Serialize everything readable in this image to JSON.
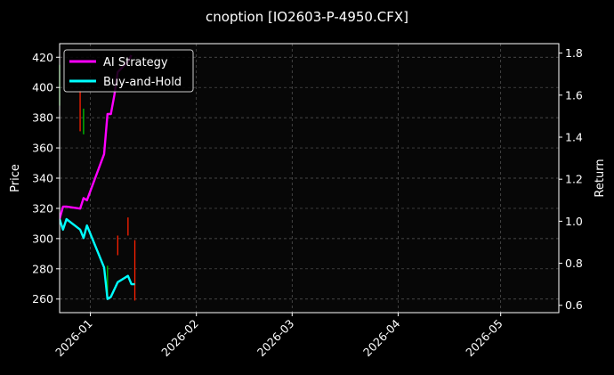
{
  "chart_data": {
    "type": "line",
    "title": "cnoption [IO2603-P-4950.CFX]",
    "ylabel_left": "Price",
    "ylabel_right": "Return",
    "x_ticks": [
      "2026-01",
      "2026-02",
      "2026-03",
      "2026-04",
      "2026-05"
    ],
    "y_left_ticks": [
      "260",
      "280",
      "300",
      "320",
      "340",
      "360",
      "380",
      "400",
      "420"
    ],
    "y_right_ticks": [
      "0.6",
      "0.8",
      "1.0",
      "1.2",
      "1.4",
      "1.6",
      "1.8"
    ],
    "xlim": [
      "2025-12-23",
      "2026-05-18"
    ],
    "ylim_left": [
      251,
      429
    ],
    "ylim_right": [
      0.565,
      1.845
    ],
    "grid": true,
    "legend_position": "top-left",
    "legend": [
      "AI Strategy",
      "Buy-and-Hold"
    ],
    "series": [
      {
        "name": "AI Strategy",
        "axis": "right",
        "color": "#ff00ff",
        "x": [
          "2025-12-23",
          "2025-12-24",
          "2025-12-25",
          "2025-12-29",
          "2025-12-30",
          "2025-12-31",
          "2026-01-05",
          "2026-01-06",
          "2026-01-07",
          "2026-01-08",
          "2026-01-09",
          "2026-01-12",
          "2026-01-13"
        ],
        "values": [
          1.01,
          1.07,
          1.07,
          1.06,
          1.11,
          1.1,
          1.32,
          1.51,
          1.51,
          1.6,
          1.71,
          1.76,
          1.79
        ]
      },
      {
        "name": "Buy-and-Hold",
        "axis": "right",
        "color": "#00ffff",
        "x": [
          "2025-12-23",
          "2025-12-24",
          "2025-12-25",
          "2025-12-29",
          "2025-12-30",
          "2025-12-31",
          "2026-01-05",
          "2026-01-06",
          "2026-01-07",
          "2026-01-09",
          "2026-01-12",
          "2026-01-13",
          "2026-01-14"
        ],
        "values": [
          1.01,
          0.96,
          1.01,
          0.96,
          0.92,
          0.98,
          0.78,
          0.63,
          0.64,
          0.71,
          0.74,
          0.7,
          0.7
        ]
      }
    ],
    "candles": [
      {
        "x": "2025-12-23",
        "low": 388,
        "high": 415,
        "color": "#00c800"
      },
      {
        "x": "2025-12-29",
        "low": 371,
        "high": 398,
        "color": "#ff2000"
      },
      {
        "x": "2025-12-30",
        "low": 369,
        "high": 386,
        "color": "#00c800"
      },
      {
        "x": "2026-01-06",
        "low": 263,
        "high": 282,
        "color": "#00c800"
      },
      {
        "x": "2026-01-09",
        "low": 289,
        "high": 302,
        "color": "#ff2000"
      },
      {
        "x": "2026-01-12",
        "low": 302,
        "high": 314,
        "color": "#ff2000"
      },
      {
        "x": "2026-01-14",
        "low": 259,
        "high": 299,
        "color": "#ff2000"
      }
    ]
  }
}
